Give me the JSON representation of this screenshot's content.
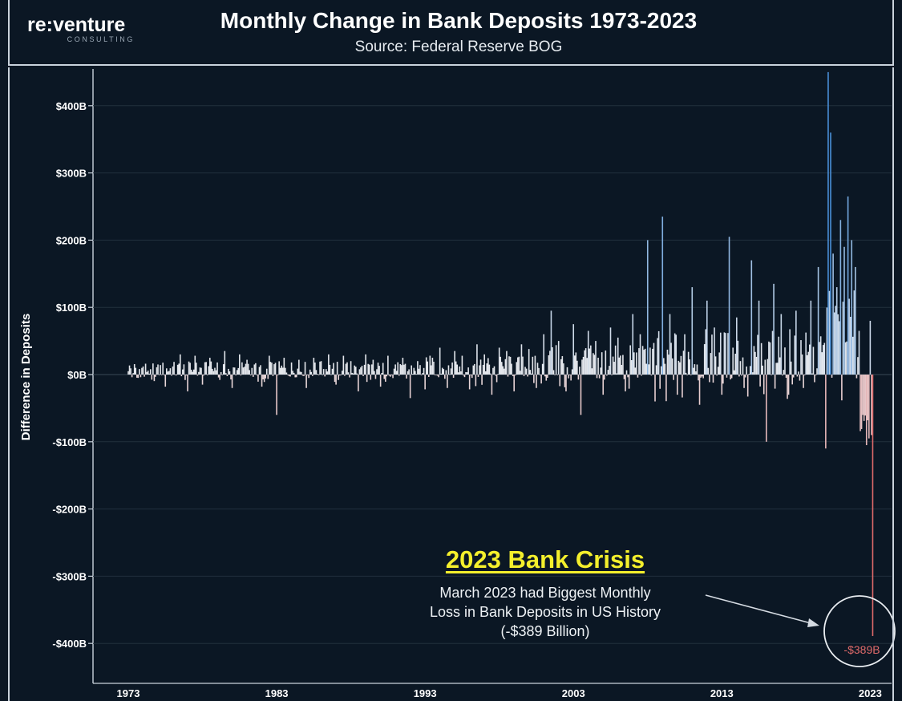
{
  "header": {
    "logo_main": "re:venture",
    "logo_sub": "CONSULTING",
    "title": "Monthly Change in Bank Deposits 1973-2023",
    "subtitle": "Source: Federal Reserve BOG"
  },
  "annotation": {
    "title": "2023 Bank Crisis",
    "line1": "March 2023 had Biggest Monthly",
    "line2": "Loss in Bank Deposits in US History",
    "line3": "(-$389 Billion)",
    "callout_value": "-$389B"
  },
  "colors": {
    "background": "#0b1724",
    "neutral_bar": "#e4e7ec",
    "positive_high": "#4a90d9",
    "negative_high": "#e06a6a",
    "annotation_title": "#f4ef2c"
  },
  "chart_data": {
    "type": "bar",
    "ylabel": "Difference in Deposits",
    "xlabel": "",
    "ylim": [
      -440,
      450
    ],
    "yticks": [
      400,
      300,
      200,
      100,
      0,
      -100,
      -200,
      -300,
      -400
    ],
    "ytick_labels": [
      "$400B",
      "$300B",
      "$200B",
      "$100B",
      "$0B",
      "-$100B",
      "-$200B",
      "-$300B",
      "-$400B"
    ],
    "xticks": [
      1973,
      1983,
      1993,
      2003,
      2013,
      2023
    ],
    "xlim": [
      1973,
      2023.25
    ],
    "grid": "horizontal",
    "units": "billions of USD",
    "anchors": [
      {
        "x": 1973.0,
        "y": 5
      },
      {
        "x": 1973.5,
        "y": 10
      },
      {
        "x": 1974.0,
        "y": 12
      },
      {
        "x": 1974.5,
        "y": 8
      },
      {
        "x": 1975.0,
        "y": 15
      },
      {
        "x": 1975.5,
        "y": -18
      },
      {
        "x": 1976.0,
        "y": 12
      },
      {
        "x": 1976.5,
        "y": 30
      },
      {
        "x": 1977.0,
        "y": -25
      },
      {
        "x": 1977.5,
        "y": 28
      },
      {
        "x": 1978.0,
        "y": -15
      },
      {
        "x": 1978.5,
        "y": 25
      },
      {
        "x": 1979.0,
        "y": 18
      },
      {
        "x": 1979.5,
        "y": 35
      },
      {
        "x": 1980.0,
        "y": -20
      },
      {
        "x": 1980.5,
        "y": 30
      },
      {
        "x": 1981.0,
        "y": 22
      },
      {
        "x": 1981.5,
        "y": 15
      },
      {
        "x": 1982.0,
        "y": -18
      },
      {
        "x": 1982.5,
        "y": 28
      },
      {
        "x": 1983.0,
        "y": -60
      },
      {
        "x": 1983.5,
        "y": 25
      },
      {
        "x": 1984.0,
        "y": 18
      },
      {
        "x": 1984.5,
        "y": 22
      },
      {
        "x": 1985.0,
        "y": -20
      },
      {
        "x": 1985.5,
        "y": 25
      },
      {
        "x": 1986.0,
        "y": 20
      },
      {
        "x": 1986.5,
        "y": 30
      },
      {
        "x": 1987.0,
        "y": -15
      },
      {
        "x": 1987.5,
        "y": 28
      },
      {
        "x": 1988.0,
        "y": 20
      },
      {
        "x": 1988.5,
        "y": -25
      },
      {
        "x": 1989.0,
        "y": 30
      },
      {
        "x": 1989.5,
        "y": 22
      },
      {
        "x": 1990.0,
        "y": -18
      },
      {
        "x": 1990.5,
        "y": 28
      },
      {
        "x": 1991.0,
        "y": 15
      },
      {
        "x": 1991.5,
        "y": 25
      },
      {
        "x": 1992.0,
        "y": -35
      },
      {
        "x": 1992.5,
        "y": 20
      },
      {
        "x": 1993.0,
        "y": -22
      },
      {
        "x": 1993.5,
        "y": 25
      },
      {
        "x": 1994.0,
        "y": 40
      },
      {
        "x": 1994.5,
        "y": -20
      },
      {
        "x": 1995.0,
        "y": 35
      },
      {
        "x": 1995.5,
        "y": 28
      },
      {
        "x": 1996.0,
        "y": -22
      },
      {
        "x": 1996.5,
        "y": 45
      },
      {
        "x": 1997.0,
        "y": 30
      },
      {
        "x": 1997.5,
        "y": -30
      },
      {
        "x": 1998.0,
        "y": 40
      },
      {
        "x": 1998.5,
        "y": 35
      },
      {
        "x": 1999.0,
        "y": -25
      },
      {
        "x": 1999.5,
        "y": 45
      },
      {
        "x": 2000.0,
        "y": 38
      },
      {
        "x": 2000.5,
        "y": -20
      },
      {
        "x": 2001.0,
        "y": 60
      },
      {
        "x": 2001.5,
        "y": 95
      },
      {
        "x": 2002.0,
        "y": 50
      },
      {
        "x": 2002.5,
        "y": -25
      },
      {
        "x": 2003.0,
        "y": 75
      },
      {
        "x": 2003.5,
        "y": -60
      },
      {
        "x": 2004.0,
        "y": 65
      },
      {
        "x": 2004.5,
        "y": 50
      },
      {
        "x": 2005.0,
        "y": -30
      },
      {
        "x": 2005.5,
        "y": 70
      },
      {
        "x": 2006.0,
        "y": 55
      },
      {
        "x": 2006.5,
        "y": -25
      },
      {
        "x": 2007.0,
        "y": 90
      },
      {
        "x": 2007.5,
        "y": 60
      },
      {
        "x": 2008.0,
        "y": 200
      },
      {
        "x": 2008.5,
        "y": -40
      },
      {
        "x": 2009.0,
        "y": 235
      },
      {
        "x": 2009.5,
        "y": 90
      },
      {
        "x": 2010.0,
        "y": -30
      },
      {
        "x": 2010.5,
        "y": 60
      },
      {
        "x": 2011.0,
        "y": 130
      },
      {
        "x": 2011.5,
        "y": -45
      },
      {
        "x": 2012.0,
        "y": 110
      },
      {
        "x": 2012.5,
        "y": 70
      },
      {
        "x": 2013.0,
        "y": -30
      },
      {
        "x": 2013.5,
        "y": 205
      },
      {
        "x": 2014.0,
        "y": 85
      },
      {
        "x": 2014.5,
        "y": -20
      },
      {
        "x": 2015.0,
        "y": 170
      },
      {
        "x": 2015.5,
        "y": 110
      },
      {
        "x": 2016.0,
        "y": -100
      },
      {
        "x": 2016.5,
        "y": 135
      },
      {
        "x": 2017.0,
        "y": 90
      },
      {
        "x": 2017.5,
        "y": -30
      },
      {
        "x": 2018.0,
        "y": 95
      },
      {
        "x": 2018.5,
        "y": -20
      },
      {
        "x": 2019.0,
        "y": 110
      },
      {
        "x": 2019.5,
        "y": 160
      },
      {
        "x": 2020.0,
        "y": -110
      },
      {
        "x": 2020.17,
        "y": 450
      },
      {
        "x": 2020.33,
        "y": 360
      },
      {
        "x": 2020.5,
        "y": 180
      },
      {
        "x": 2020.75,
        "y": 130
      },
      {
        "x": 2021.0,
        "y": 230
      },
      {
        "x": 2021.25,
        "y": 190
      },
      {
        "x": 2021.5,
        "y": 265
      },
      {
        "x": 2021.75,
        "y": 200
      },
      {
        "x": 2022.0,
        "y": 160
      },
      {
        "x": 2022.25,
        "y": 65
      },
      {
        "x": 2022.5,
        "y": -60
      },
      {
        "x": 2022.75,
        "y": -105
      },
      {
        "x": 2022.92,
        "y": -95
      },
      {
        "x": 2023.0,
        "y": 80
      },
      {
        "x": 2023.08,
        "y": -90
      },
      {
        "x": 2023.17,
        "y": -389
      }
    ]
  }
}
